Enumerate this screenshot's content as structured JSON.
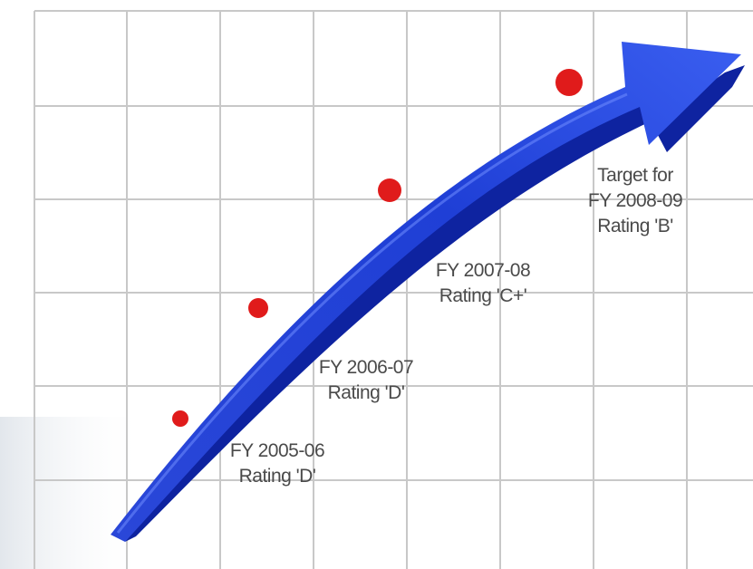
{
  "milestones": [
    {
      "year_label": "FY 2005-06",
      "rating_label": "Rating 'D'"
    },
    {
      "year_label": "FY 2006-07",
      "rating_label": "Rating 'D'"
    },
    {
      "year_label": "FY 2007-08",
      "rating_label": "Rating 'C+'"
    },
    {
      "prefix_label": "Target for",
      "year_label": "FY 2008-09",
      "rating_label": "Rating 'B'"
    }
  ],
  "colors": {
    "arrow": "#1f3fd6",
    "arrow_dark": "#0e23a0",
    "dot": "#e01b1b",
    "grid": "#c8c8c8",
    "text": "#4a4a4a"
  },
  "icons": {
    "arrow": "growth-arrow-icon",
    "dot": "milestone-dot-icon"
  }
}
